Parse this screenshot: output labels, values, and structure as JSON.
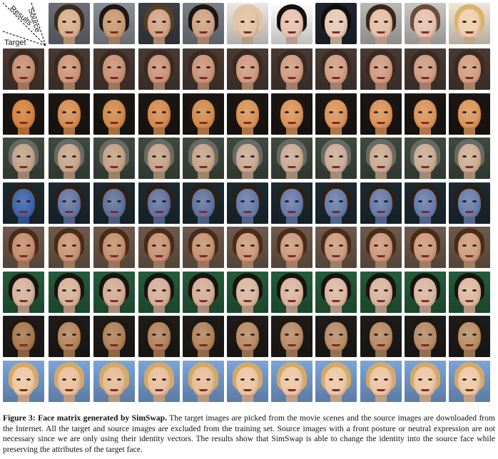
{
  "corner_labels": {
    "source": "Source",
    "results": "Results",
    "target": "Target"
  },
  "sources": [
    {
      "skin": "#d9b08f",
      "hair": "#3b2a1d",
      "bg": "#6b6e78"
    },
    {
      "skin": "#c99a72",
      "hair": "#1c1713",
      "bg": "#8a8f96"
    },
    {
      "skin": "#d3a58a",
      "hair": "#5a3d25",
      "bg": "#3c3f46"
    },
    {
      "skin": "#d0a383",
      "hair": "#1a1512",
      "bg": "#7a7f88"
    },
    {
      "skin": "#e2c4a6",
      "hair": "#e2c4a6",
      "bg": "#ece9e4"
    },
    {
      "skin": "#e7c3b1",
      "hair": "#15100e",
      "bg": "#ffffff"
    },
    {
      "skin": "#e8c9b6",
      "hair": "#120e0c",
      "bg": "#1f2430"
    },
    {
      "skin": "#e5bfa8",
      "hair": "#3a261a",
      "bg": "#b9b9b5"
    },
    {
      "skin": "#e6c2b0",
      "hair": "#6b4b38",
      "bg": "#c9c7c4"
    },
    {
      "skin": "#f0cfae",
      "hair": "#d9b36a",
      "bg": "#f2e6d4"
    }
  ],
  "targets": [
    {
      "skin": "#c98f74",
      "hair": "#3a2a20",
      "bg": "#4a3a33"
    },
    {
      "skin": "#d4843e",
      "hair": "#1e1510",
      "bg": "#1a1613"
    },
    {
      "skin": "#c2a48c",
      "hair": "#6a6a62",
      "bg": "#3f4a3f"
    },
    {
      "skin": "#3f64a8",
      "hair": "#2b2017",
      "bg": "#1c2a33"
    },
    {
      "skin": "#c48e6f",
      "hair": "#4a2a18",
      "bg": "#6e5a4a"
    },
    {
      "skin": "#d6b29c",
      "hair": "#1a1310",
      "bg": "#245c3a"
    },
    {
      "skin": "#a8794f",
      "hair": "#1e1712",
      "bg": "#1f1c1a"
    },
    {
      "skin": "#efc7a3",
      "hair": "#d4a866",
      "bg": "#7aa4da"
    }
  ],
  "caption": {
    "label": "Figure 3: Face matrix generated by SimSwap.",
    "text": " The target images are picked from the movie scenes and the source images are downloaded from the Internet. All the target and source images are excluded from the training set. Source images with a front posture or neutral expression are not necessary since we are only using their identity vectors. The results show that SimSwap is able to change the identity into the source face while preserving the attributes of the target face."
  }
}
